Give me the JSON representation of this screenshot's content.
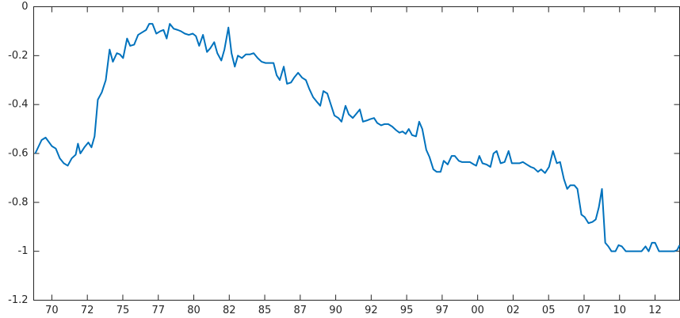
{
  "chart_data": {
    "type": "line",
    "x": [
      1968.83,
      1969.28,
      1969.56,
      1970.0,
      1970.28,
      1970.56,
      1970.84,
      1971.12,
      1971.4,
      1971.68,
      1971.84,
      1972.01,
      1972.29,
      1972.57,
      1972.79,
      1973.01,
      1973.24,
      1973.52,
      1973.8,
      1974.07,
      1974.3,
      1974.58,
      1974.8,
      1975.02,
      1975.3,
      1975.52,
      1975.8,
      1976.08,
      1976.36,
      1976.64,
      1976.86,
      1977.09,
      1977.36,
      1977.64,
      1977.87,
      1978.09,
      1978.31,
      1978.59,
      1978.87,
      1979.09,
      1979.37,
      1979.65,
      1979.93,
      1980.15,
      1980.38,
      1980.65,
      1980.93,
      1981.16,
      1981.44,
      1981.66,
      1981.94,
      1982.16,
      1982.44,
      1982.66,
      1982.89,
      1983.11,
      1983.39,
      1983.67,
      1983.95,
      1984.22,
      1984.5,
      1984.78,
      1985.06,
      1985.34,
      1985.62,
      1985.84,
      1986.06,
      1986.34,
      1986.57,
      1986.85,
      1987.07,
      1987.35,
      1987.63,
      1987.9,
      1988.13,
      1988.41,
      1988.69,
      1988.91,
      1989.13,
      1989.41,
      1989.63,
      1989.91,
      1990.19,
      1990.41,
      1990.69,
      1990.92,
      1991.2,
      1991.42,
      1991.7,
      1991.92,
      1992.2,
      1992.42,
      1992.7,
      1992.92,
      1993.2,
      1993.43,
      1993.7,
      1993.98,
      1994.26,
      1994.49,
      1994.71,
      1994.93,
      1995.15,
      1995.38,
      1995.66,
      1995.88,
      1996.1,
      1996.38,
      1996.61,
      1996.88,
      1997.11,
      1997.39,
      1997.61,
      1997.89,
      1998.17,
      1998.39,
      1998.67,
      1998.89,
      1999.17,
      1999.45,
      1999.73,
      1999.9,
      2000.12,
      2000.34,
      2000.62,
      2000.9,
      2001.12,
      2001.34,
      2001.62,
      2001.9,
      2002.18,
      2002.41,
      2002.68,
      2002.96,
      2003.19,
      2003.46,
      2003.74,
      2003.97,
      2004.25,
      2004.47,
      2004.75,
      2005.03,
      2005.31,
      2005.58,
      2005.81,
      2006.08,
      2006.31,
      2006.53,
      2006.81,
      2007.03,
      2007.31,
      2007.54,
      2007.81,
      2008.09,
      2008.32,
      2008.54,
      2008.76,
      2008.99,
      2009.21,
      2009.43,
      2009.71,
      2009.93,
      2010.16,
      2010.44,
      2010.71,
      2010.99,
      2011.27,
      2011.55,
      2011.83,
      2012.05,
      2012.28,
      2012.5,
      2012.78,
      2013.06,
      2013.34,
      2013.61,
      2013.84,
      2014.06,
      2014.23
    ],
    "series": [
      {
        "color": "#0072bd",
        "values": [
          -0.6,
          -0.545,
          -0.535,
          -0.57,
          -0.58,
          -0.62,
          -0.64,
          -0.65,
          -0.62,
          -0.605,
          -0.56,
          -0.6,
          -0.575,
          -0.555,
          -0.575,
          -0.53,
          -0.38,
          -0.35,
          -0.3,
          -0.175,
          -0.225,
          -0.19,
          -0.195,
          -0.21,
          -0.13,
          -0.16,
          -0.155,
          -0.115,
          -0.105,
          -0.095,
          -0.07,
          -0.07,
          -0.11,
          -0.1,
          -0.095,
          -0.13,
          -0.07,
          -0.09,
          -0.095,
          -0.1,
          -0.11,
          -0.115,
          -0.11,
          -0.12,
          -0.16,
          -0.115,
          -0.185,
          -0.17,
          -0.145,
          -0.19,
          -0.22,
          -0.175,
          -0.085,
          -0.19,
          -0.245,
          -0.2,
          -0.21,
          -0.195,
          -0.195,
          -0.19,
          -0.21,
          -0.225,
          -0.23,
          -0.23,
          -0.23,
          -0.28,
          -0.3,
          -0.245,
          -0.315,
          -0.31,
          -0.29,
          -0.27,
          -0.29,
          -0.3,
          -0.335,
          -0.37,
          -0.39,
          -0.405,
          -0.345,
          -0.355,
          -0.395,
          -0.445,
          -0.455,
          -0.47,
          -0.405,
          -0.44,
          -0.455,
          -0.44,
          -0.42,
          -0.47,
          -0.465,
          -0.46,
          -0.455,
          -0.475,
          -0.485,
          -0.48,
          -0.48,
          -0.49,
          -0.505,
          -0.515,
          -0.51,
          -0.52,
          -0.5,
          -0.525,
          -0.53,
          -0.47,
          -0.5,
          -0.585,
          -0.615,
          -0.665,
          -0.675,
          -0.675,
          -0.63,
          -0.645,
          -0.61,
          -0.61,
          -0.63,
          -0.635,
          -0.635,
          -0.635,
          -0.645,
          -0.65,
          -0.61,
          -0.64,
          -0.645,
          -0.655,
          -0.6,
          -0.59,
          -0.64,
          -0.635,
          -0.59,
          -0.64,
          -0.64,
          -0.64,
          -0.635,
          -0.645,
          -0.655,
          -0.66,
          -0.675,
          -0.665,
          -0.68,
          -0.655,
          -0.59,
          -0.64,
          -0.635,
          -0.705,
          -0.745,
          -0.73,
          -0.73,
          -0.745,
          -0.85,
          -0.86,
          -0.885,
          -0.88,
          -0.87,
          -0.82,
          -0.745,
          -0.965,
          -0.98,
          -1.0,
          -1.0,
          -0.975,
          -0.98,
          -1.0,
          -1.0,
          -1.0,
          -1.0,
          -1.0,
          -0.98,
          -1.0,
          -0.965,
          -0.965,
          -1.0,
          -1.0,
          -1.0,
          -1.0,
          -1.0,
          -0.995,
          -0.975
        ]
      }
    ],
    "xlim": [
      1968.72,
      2014.23
    ],
    "xticks": [
      {
        "value": 1970,
        "label": "70"
      },
      {
        "value": 1972.5,
        "label": "72"
      },
      {
        "value": 1975,
        "label": "75"
      },
      {
        "value": 1977.5,
        "label": "77"
      },
      {
        "value": 1980,
        "label": "80"
      },
      {
        "value": 1982.5,
        "label": "82"
      },
      {
        "value": 1985,
        "label": "85"
      },
      {
        "value": 1987.5,
        "label": "87"
      },
      {
        "value": 1990,
        "label": "90"
      },
      {
        "value": 1992.5,
        "label": "92"
      },
      {
        "value": 1995,
        "label": "95"
      },
      {
        "value": 1997.5,
        "label": "97"
      },
      {
        "value": 2000,
        "label": "00"
      },
      {
        "value": 2002.5,
        "label": "02"
      },
      {
        "value": 2005,
        "label": "05"
      },
      {
        "value": 2007.5,
        "label": "07"
      },
      {
        "value": 2010,
        "label": "10"
      },
      {
        "value": 2012.5,
        "label": "12"
      }
    ],
    "ylim": [
      -1.2,
      0
    ],
    "yticks": [
      0,
      -0.2,
      -0.4,
      -0.6,
      -0.8,
      -1,
      -1.2
    ]
  }
}
